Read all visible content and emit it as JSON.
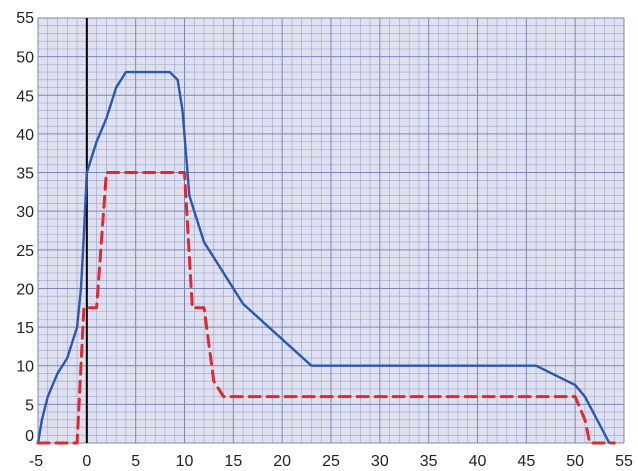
{
  "chart_data": {
    "type": "line",
    "title": "",
    "xlabel": "",
    "ylabel": "",
    "xlim": [
      -5,
      55
    ],
    "ylim": [
      0,
      55
    ],
    "x_ticks": [
      "-5",
      "0",
      "5",
      "10",
      "15",
      "20",
      "25",
      "30",
      "35",
      "40",
      "45",
      "50",
      "55"
    ],
    "y_ticks": [
      "0",
      "5",
      "10",
      "15",
      "20",
      "25",
      "30",
      "35",
      "40",
      "45",
      "50",
      "55"
    ],
    "grid": true,
    "grid_minor_step": 1,
    "vertical_reference_line_x": 0,
    "legend": "none",
    "colors": {
      "plot_background": "#dfe1f0",
      "grid_minor": "#9ca2c8",
      "grid_major": "#7f86b6",
      "reference_line": "#000000"
    },
    "series": [
      {
        "style": "solid",
        "color": "#2a57b2",
        "points": [
          [
            -5,
            0
          ],
          [
            -4.6,
            3
          ],
          [
            -4,
            6
          ],
          [
            -3,
            9
          ],
          [
            -2,
            11
          ],
          [
            -1,
            15
          ],
          [
            -0.6,
            20
          ],
          [
            -0.3,
            27
          ],
          [
            0,
            35
          ],
          [
            0.5,
            37
          ],
          [
            1,
            39
          ],
          [
            2,
            42
          ],
          [
            3,
            46
          ],
          [
            4,
            48
          ],
          [
            5,
            48
          ],
          [
            6,
            48
          ],
          [
            8.5,
            48
          ],
          [
            9.3,
            47
          ],
          [
            9.8,
            43
          ],
          [
            10.5,
            32
          ],
          [
            12,
            26
          ],
          [
            13.5,
            23
          ],
          [
            16,
            18
          ],
          [
            23,
            10
          ],
          [
            46,
            10
          ],
          [
            50,
            7.5
          ],
          [
            51,
            6
          ],
          [
            53.5,
            0
          ]
        ]
      },
      {
        "style": "dashed",
        "color": "#e0282f",
        "points": [
          [
            -5,
            0
          ],
          [
            -1,
            0
          ],
          [
            -0.3,
            17.5
          ],
          [
            1,
            17.5
          ],
          [
            2,
            35
          ],
          [
            10,
            35
          ],
          [
            10.8,
            17.5
          ],
          [
            12,
            17.5
          ],
          [
            13,
            8
          ],
          [
            14,
            6
          ],
          [
            50,
            6
          ],
          [
            51,
            3
          ],
          [
            51.5,
            0
          ],
          [
            54,
            0
          ]
        ]
      }
    ]
  }
}
